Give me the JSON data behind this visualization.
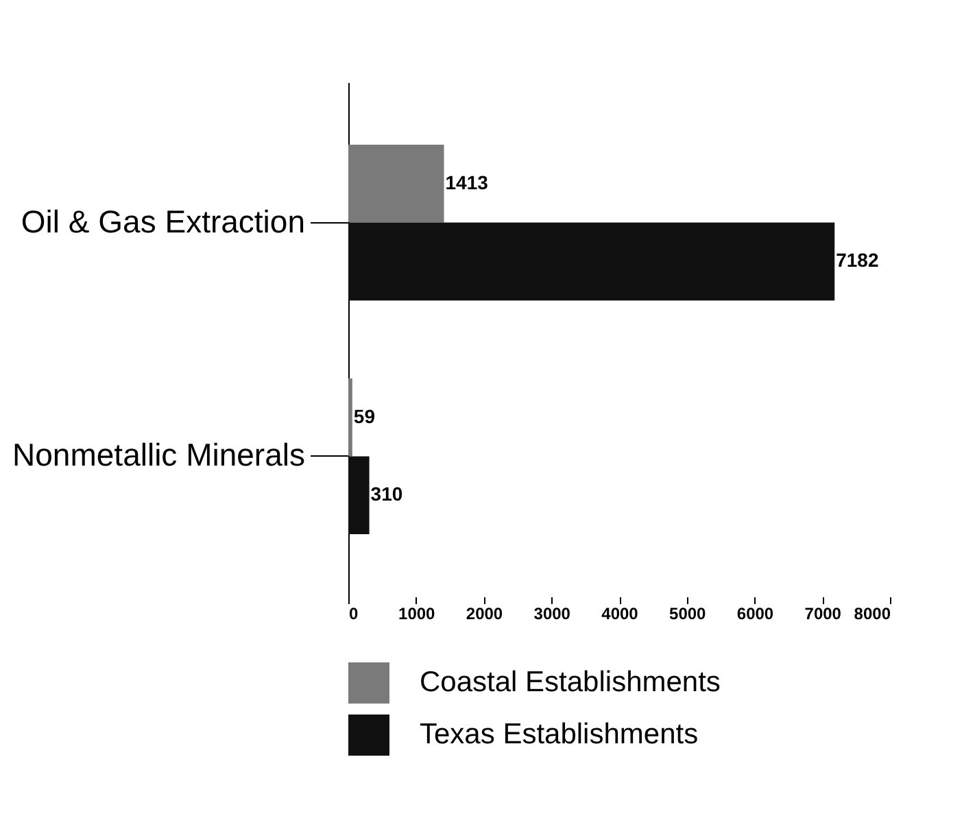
{
  "chart_data": {
    "type": "bar",
    "orientation": "horizontal",
    "categories": [
      "Oil & Gas Extraction",
      "Nonmetallic Minerals"
    ],
    "series": [
      {
        "name": "Coastal Establishments",
        "color": "#7a7a7a",
        "values": [
          1413,
          59
        ]
      },
      {
        "name": "Texas Establishments",
        "color": "#111111",
        "values": [
          7182,
          310
        ]
      }
    ],
    "xlim": [
      0,
      8000
    ],
    "xticks": [
      0,
      1000,
      2000,
      3000,
      4000,
      5000,
      6000,
      7000,
      8000
    ],
    "data_labels": true,
    "legend": "bottom",
    "grid": false
  }
}
